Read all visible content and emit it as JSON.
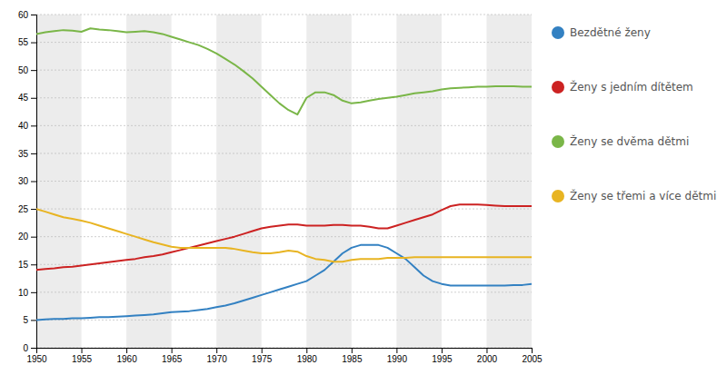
{
  "chart_data": {
    "type": "line",
    "x": [
      1950,
      1951,
      1952,
      1953,
      1954,
      1955,
      1956,
      1957,
      1958,
      1959,
      1960,
      1961,
      1962,
      1963,
      1964,
      1965,
      1966,
      1967,
      1968,
      1969,
      1970,
      1971,
      1972,
      1973,
      1974,
      1975,
      1976,
      1977,
      1978,
      1979,
      1980,
      1981,
      1982,
      1983,
      1984,
      1985,
      1986,
      1987,
      1988,
      1989,
      1990,
      1991,
      1992,
      1993,
      1994,
      1995,
      1996,
      1997,
      1998,
      1999,
      2000,
      2001,
      2002,
      2003,
      2004,
      2005
    ],
    "series": [
      {
        "name": "Bezdětné ženy",
        "color": "#3381c2",
        "values": [
          5.0,
          5.1,
          5.2,
          5.2,
          5.3,
          5.3,
          5.4,
          5.5,
          5.5,
          5.6,
          5.7,
          5.8,
          5.9,
          6.0,
          6.2,
          6.4,
          6.5,
          6.6,
          6.8,
          7.0,
          7.3,
          7.6,
          8.0,
          8.5,
          9.0,
          9.5,
          10.0,
          10.5,
          11.0,
          11.5,
          12.0,
          13.0,
          14.0,
          15.5,
          17.0,
          18.0,
          18.5,
          18.5,
          18.5,
          18.0,
          17.0,
          16.0,
          14.5,
          13.0,
          12.0,
          11.5,
          11.2,
          11.2,
          11.2,
          11.2,
          11.2,
          11.2,
          11.2,
          11.3,
          11.3,
          11.5
        ]
      },
      {
        "name": "Ženy s jedním dítětem",
        "color": "#cc2222",
        "values": [
          14.0,
          14.2,
          14.3,
          14.5,
          14.6,
          14.8,
          15.0,
          15.2,
          15.4,
          15.6,
          15.8,
          16.0,
          16.3,
          16.5,
          16.8,
          17.2,
          17.6,
          18.0,
          18.4,
          18.8,
          19.2,
          19.6,
          20.0,
          20.5,
          21.0,
          21.5,
          21.8,
          22.0,
          22.2,
          22.2,
          22.0,
          22.0,
          22.0,
          22.1,
          22.1,
          22.0,
          22.0,
          21.8,
          21.5,
          21.5,
          22.0,
          22.5,
          23.0,
          23.5,
          24.0,
          24.8,
          25.5,
          25.8,
          25.8,
          25.8,
          25.7,
          25.6,
          25.5,
          25.5,
          25.5,
          25.5
        ]
      },
      {
        "name": "Ženy se dvěma dětmi",
        "color": "#7ab648",
        "values": [
          56.5,
          56.8,
          57.0,
          57.2,
          57.1,
          56.9,
          57.5,
          57.3,
          57.2,
          57.0,
          56.8,
          56.9,
          57.0,
          56.8,
          56.5,
          56.0,
          55.5,
          55.0,
          54.5,
          53.8,
          53.0,
          52.0,
          51.0,
          49.8,
          48.5,
          47.0,
          45.5,
          44.0,
          42.8,
          42.0,
          45.0,
          46.0,
          46.0,
          45.5,
          44.5,
          44.0,
          44.2,
          44.5,
          44.8,
          45.0,
          45.2,
          45.5,
          45.8,
          46.0,
          46.2,
          46.5,
          46.7,
          46.8,
          46.9,
          47.0,
          47.0,
          47.1,
          47.1,
          47.1,
          47.0,
          47.0
        ]
      },
      {
        "name": "Ženy se třemi a více dětmi",
        "color": "#e8b422",
        "values": [
          25.0,
          24.5,
          24.0,
          23.5,
          23.2,
          22.9,
          22.5,
          22.0,
          21.5,
          21.0,
          20.5,
          20.0,
          19.5,
          19.0,
          18.6,
          18.2,
          18.0,
          18.0,
          18.0,
          18.0,
          18.0,
          18.0,
          17.8,
          17.5,
          17.2,
          17.0,
          17.0,
          17.2,
          17.5,
          17.3,
          16.5,
          16.0,
          15.8,
          15.5,
          15.5,
          15.8,
          16.0,
          16.0,
          16.0,
          16.2,
          16.2,
          16.2,
          16.3,
          16.3,
          16.3,
          16.3,
          16.3,
          16.3,
          16.3,
          16.3,
          16.3,
          16.3,
          16.3,
          16.3,
          16.3,
          16.3
        ]
      }
    ],
    "xlim": [
      1950,
      2005
    ],
    "xticks": [
      1950,
      1955,
      1960,
      1965,
      1970,
      1975,
      1980,
      1985,
      1990,
      1995,
      2000,
      2005
    ],
    "ylim": [
      0,
      60
    ],
    "yticks": [
      0,
      5,
      10,
      15,
      20,
      25,
      30,
      35,
      40,
      45,
      50,
      55,
      60
    ],
    "grid": true,
    "legend": "right"
  }
}
